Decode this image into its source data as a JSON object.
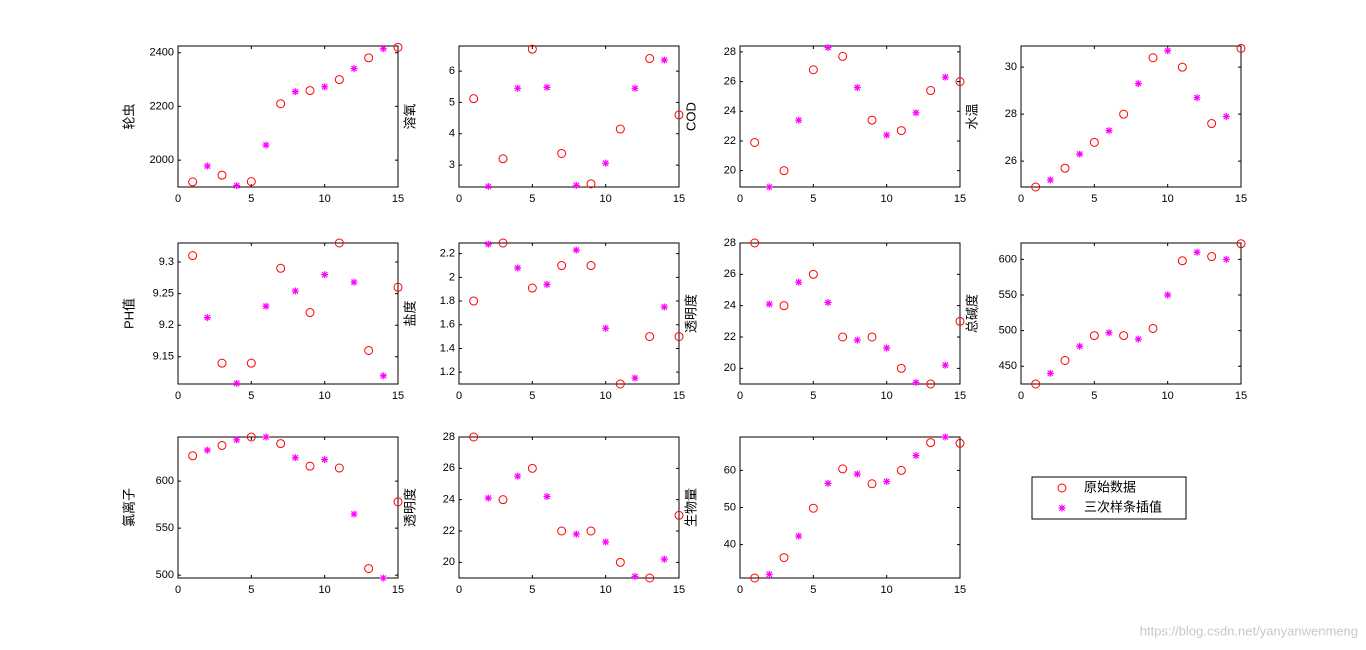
{
  "chart_data": [
    {
      "type": "scatter",
      "ylabel": "轮虫",
      "xlim": [
        0,
        15
      ],
      "xticks": [
        0,
        5,
        10,
        15
      ],
      "ylim": [
        1900,
        2425
      ],
      "yticks": [
        2000,
        2200,
        2400
      ],
      "series": [
        {
          "marker": "circle",
          "color": "#ff0000",
          "x": [
            1,
            3,
            5,
            7,
            9,
            11,
            13,
            15
          ],
          "values": [
            1919,
            1944,
            1920,
            2210,
            2259,
            2300,
            2381,
            2420
          ]
        },
        {
          "marker": "star",
          "color": "#ff00ff",
          "x": [
            2,
            4,
            6,
            8,
            10,
            12,
            14
          ],
          "values": [
            1978,
            1905,
            2056,
            2255,
            2273,
            2341,
            2415
          ]
        }
      ]
    },
    {
      "type": "scatter",
      "ylabel": "溶氧",
      "xlim": [
        0,
        15
      ],
      "xticks": [
        0,
        5,
        10,
        15
      ],
      "ylim": [
        2.3,
        6.8
      ],
      "yticks": [
        3,
        4,
        5,
        6
      ],
      "series": [
        {
          "marker": "circle",
          "color": "#ff0000",
          "x": [
            1,
            3,
            5,
            7,
            9,
            11,
            13,
            15
          ],
          "values": [
            5.12,
            3.2,
            6.7,
            3.37,
            2.4,
            4.15,
            6.4,
            4.6
          ]
        },
        {
          "marker": "star",
          "color": "#ff00ff",
          "x": [
            2,
            4,
            6,
            8,
            10,
            12,
            14
          ],
          "values": [
            2.32,
            5.45,
            5.48,
            2.35,
            3.06,
            5.45,
            6.35
          ]
        }
      ]
    },
    {
      "type": "scatter",
      "ylabel": "COD",
      "xlim": [
        0,
        15
      ],
      "xticks": [
        0,
        5,
        10,
        15
      ],
      "ylim": [
        18.9,
        28.4
      ],
      "yticks": [
        20,
        22,
        24,
        26,
        28
      ],
      "series": [
        {
          "marker": "circle",
          "color": "#ff0000",
          "x": [
            1,
            3,
            5,
            7,
            9,
            11,
            13,
            15
          ],
          "values": [
            21.9,
            20,
            26.8,
            27.7,
            23.4,
            22.7,
            25.4,
            26.0
          ]
        },
        {
          "marker": "star",
          "color": "#ff00ff",
          "x": [
            2,
            4,
            6,
            8,
            10,
            12,
            14
          ],
          "values": [
            18.9,
            23.4,
            28.3,
            25.6,
            22.4,
            23.9,
            26.3
          ]
        }
      ]
    },
    {
      "type": "scatter",
      "ylabel": "水温",
      "xlim": [
        0,
        15
      ],
      "xticks": [
        0,
        5,
        10,
        15
      ],
      "ylim": [
        24.9,
        30.9
      ],
      "yticks": [
        26,
        28,
        30
      ],
      "series": [
        {
          "marker": "circle",
          "color": "#ff0000",
          "x": [
            1,
            3,
            5,
            7,
            9,
            11,
            13,
            15
          ],
          "values": [
            24.9,
            25.7,
            26.8,
            28.0,
            30.4,
            30.0,
            27.6,
            30.8
          ]
        },
        {
          "marker": "star",
          "color": "#ff00ff",
          "x": [
            2,
            4,
            6,
            8,
            10,
            12,
            14
          ],
          "values": [
            25.2,
            26.3,
            27.3,
            29.3,
            30.7,
            28.7,
            27.9
          ]
        }
      ]
    },
    {
      "type": "scatter",
      "ylabel": "PH值",
      "xlim": [
        0,
        15
      ],
      "xticks": [
        0,
        5,
        10,
        15
      ],
      "ylim": [
        9.107,
        9.33
      ],
      "yticks": [
        9.15,
        9.2,
        9.25,
        9.3
      ],
      "series": [
        {
          "marker": "circle",
          "color": "#ff0000",
          "x": [
            1,
            3,
            5,
            7,
            9,
            11,
            13,
            15
          ],
          "values": [
            9.31,
            9.14,
            9.14,
            9.29,
            9.22,
            9.33,
            9.16,
            9.26
          ]
        },
        {
          "marker": "star",
          "color": "#ff00ff",
          "x": [
            2,
            4,
            6,
            8,
            10,
            12,
            14
          ],
          "values": [
            9.212,
            9.108,
            9.23,
            9.254,
            9.28,
            9.268,
            9.12
          ]
        }
      ]
    },
    {
      "type": "scatter",
      "ylabel": "盐度",
      "xlim": [
        0,
        15
      ],
      "xticks": [
        0,
        5,
        10,
        15
      ],
      "ylim": [
        1.1,
        2.29
      ],
      "yticks": [
        1.2,
        1.4,
        1.6,
        1.8,
        2,
        2.2
      ],
      "series": [
        {
          "marker": "circle",
          "color": "#ff0000",
          "x": [
            1,
            3,
            5,
            7,
            9,
            11,
            13,
            15
          ],
          "values": [
            1.8,
            2.29,
            1.91,
            2.1,
            2.1,
            1.1,
            1.5,
            1.5
          ]
        },
        {
          "marker": "star",
          "color": "#ff00ff",
          "x": [
            2,
            4,
            6,
            8,
            10,
            12,
            14
          ],
          "values": [
            2.28,
            2.08,
            1.94,
            2.23,
            1.57,
            1.15,
            1.75
          ]
        }
      ]
    },
    {
      "type": "scatter",
      "ylabel": "透明度",
      "xlim": [
        0,
        15
      ],
      "xticks": [
        0,
        5,
        10,
        15
      ],
      "ylim": [
        19,
        28
      ],
      "yticks": [
        20,
        22,
        24,
        26,
        28
      ],
      "series": [
        {
          "marker": "circle",
          "color": "#ff0000",
          "x": [
            1,
            3,
            5,
            7,
            9,
            11,
            13,
            15
          ],
          "values": [
            28,
            24,
            26,
            22,
            22,
            20,
            19,
            23
          ]
        },
        {
          "marker": "star",
          "color": "#ff00ff",
          "x": [
            2,
            4,
            6,
            8,
            10,
            12,
            14
          ],
          "values": [
            24.1,
            25.5,
            24.2,
            21.8,
            21.3,
            19.1,
            20.2
          ]
        }
      ]
    },
    {
      "type": "scatter",
      "ylabel": "总碱度",
      "xlim": [
        0,
        15
      ],
      "xticks": [
        0,
        5,
        10,
        15
      ],
      "ylim": [
        425,
        623
      ],
      "yticks": [
        450,
        500,
        550,
        600
      ],
      "series": [
        {
          "marker": "circle",
          "color": "#ff0000",
          "x": [
            1,
            3,
            5,
            7,
            9,
            11,
            13,
            15
          ],
          "values": [
            425,
            458,
            493,
            493,
            503,
            598,
            604,
            622
          ]
        },
        {
          "marker": "star",
          "color": "#ff00ff",
          "x": [
            2,
            4,
            6,
            8,
            10,
            12,
            14
          ],
          "values": [
            440,
            478,
            497,
            488,
            550,
            610,
            600
          ]
        }
      ]
    },
    {
      "type": "scatter",
      "ylabel": "氯离子",
      "xlim": [
        0,
        15
      ],
      "xticks": [
        0,
        5,
        10,
        15
      ],
      "ylim": [
        497,
        647
      ],
      "yticks": [
        500,
        550,
        600
      ],
      "series": [
        {
          "marker": "circle",
          "color": "#ff0000",
          "x": [
            1,
            3,
            5,
            7,
            9,
            11,
            13,
            15
          ],
          "values": [
            627,
            638,
            647,
            640,
            616,
            614,
            507,
            578
          ]
        },
        {
          "marker": "star",
          "color": "#ff00ff",
          "x": [
            2,
            4,
            6,
            8,
            10,
            12,
            14
          ],
          "values": [
            633,
            644,
            647,
            625,
            623,
            565,
            497
          ]
        }
      ]
    },
    {
      "type": "scatter",
      "ylabel": "透明度",
      "xlim": [
        0,
        15
      ],
      "xticks": [
        0,
        5,
        10,
        15
      ],
      "ylim": [
        19,
        28
      ],
      "yticks": [
        20,
        22,
        24,
        26,
        28
      ],
      "series": [
        {
          "marker": "circle",
          "color": "#ff0000",
          "x": [
            1,
            3,
            5,
            7,
            9,
            11,
            13,
            15
          ],
          "values": [
            28,
            24,
            26,
            22,
            22,
            20,
            19,
            23
          ]
        },
        {
          "marker": "star",
          "color": "#ff00ff",
          "x": [
            2,
            4,
            6,
            8,
            10,
            12,
            14
          ],
          "values": [
            24.1,
            25.5,
            24.2,
            21.8,
            21.3,
            19.1,
            20.2
          ]
        }
      ]
    },
    {
      "type": "scatter",
      "ylabel": "生物量",
      "xlim": [
        0,
        15
      ],
      "xticks": [
        0,
        5,
        10,
        15
      ],
      "ylim": [
        31,
        69
      ],
      "yticks": [
        40,
        50,
        60
      ],
      "series": [
        {
          "marker": "circle",
          "color": "#ff0000",
          "x": [
            1,
            3,
            5,
            7,
            9,
            11,
            13,
            15
          ],
          "values": [
            31,
            36.5,
            49.8,
            60.4,
            56.4,
            60,
            67.5,
            67.3
          ]
        },
        {
          "marker": "star",
          "color": "#ff00ff",
          "x": [
            2,
            4,
            6,
            8,
            10,
            12,
            14
          ],
          "values": [
            32,
            42.3,
            56.5,
            59,
            57,
            64,
            69
          ]
        }
      ]
    }
  ],
  "legend": {
    "entries": [
      {
        "name": "原始数据",
        "marker": "circle",
        "color": "#ff0000"
      },
      {
        "name": "三次样条插值",
        "marker": "star",
        "color": "#ff00ff"
      }
    ]
  },
  "watermark": "https://blog.csdn.net/yanyanwenmeng"
}
